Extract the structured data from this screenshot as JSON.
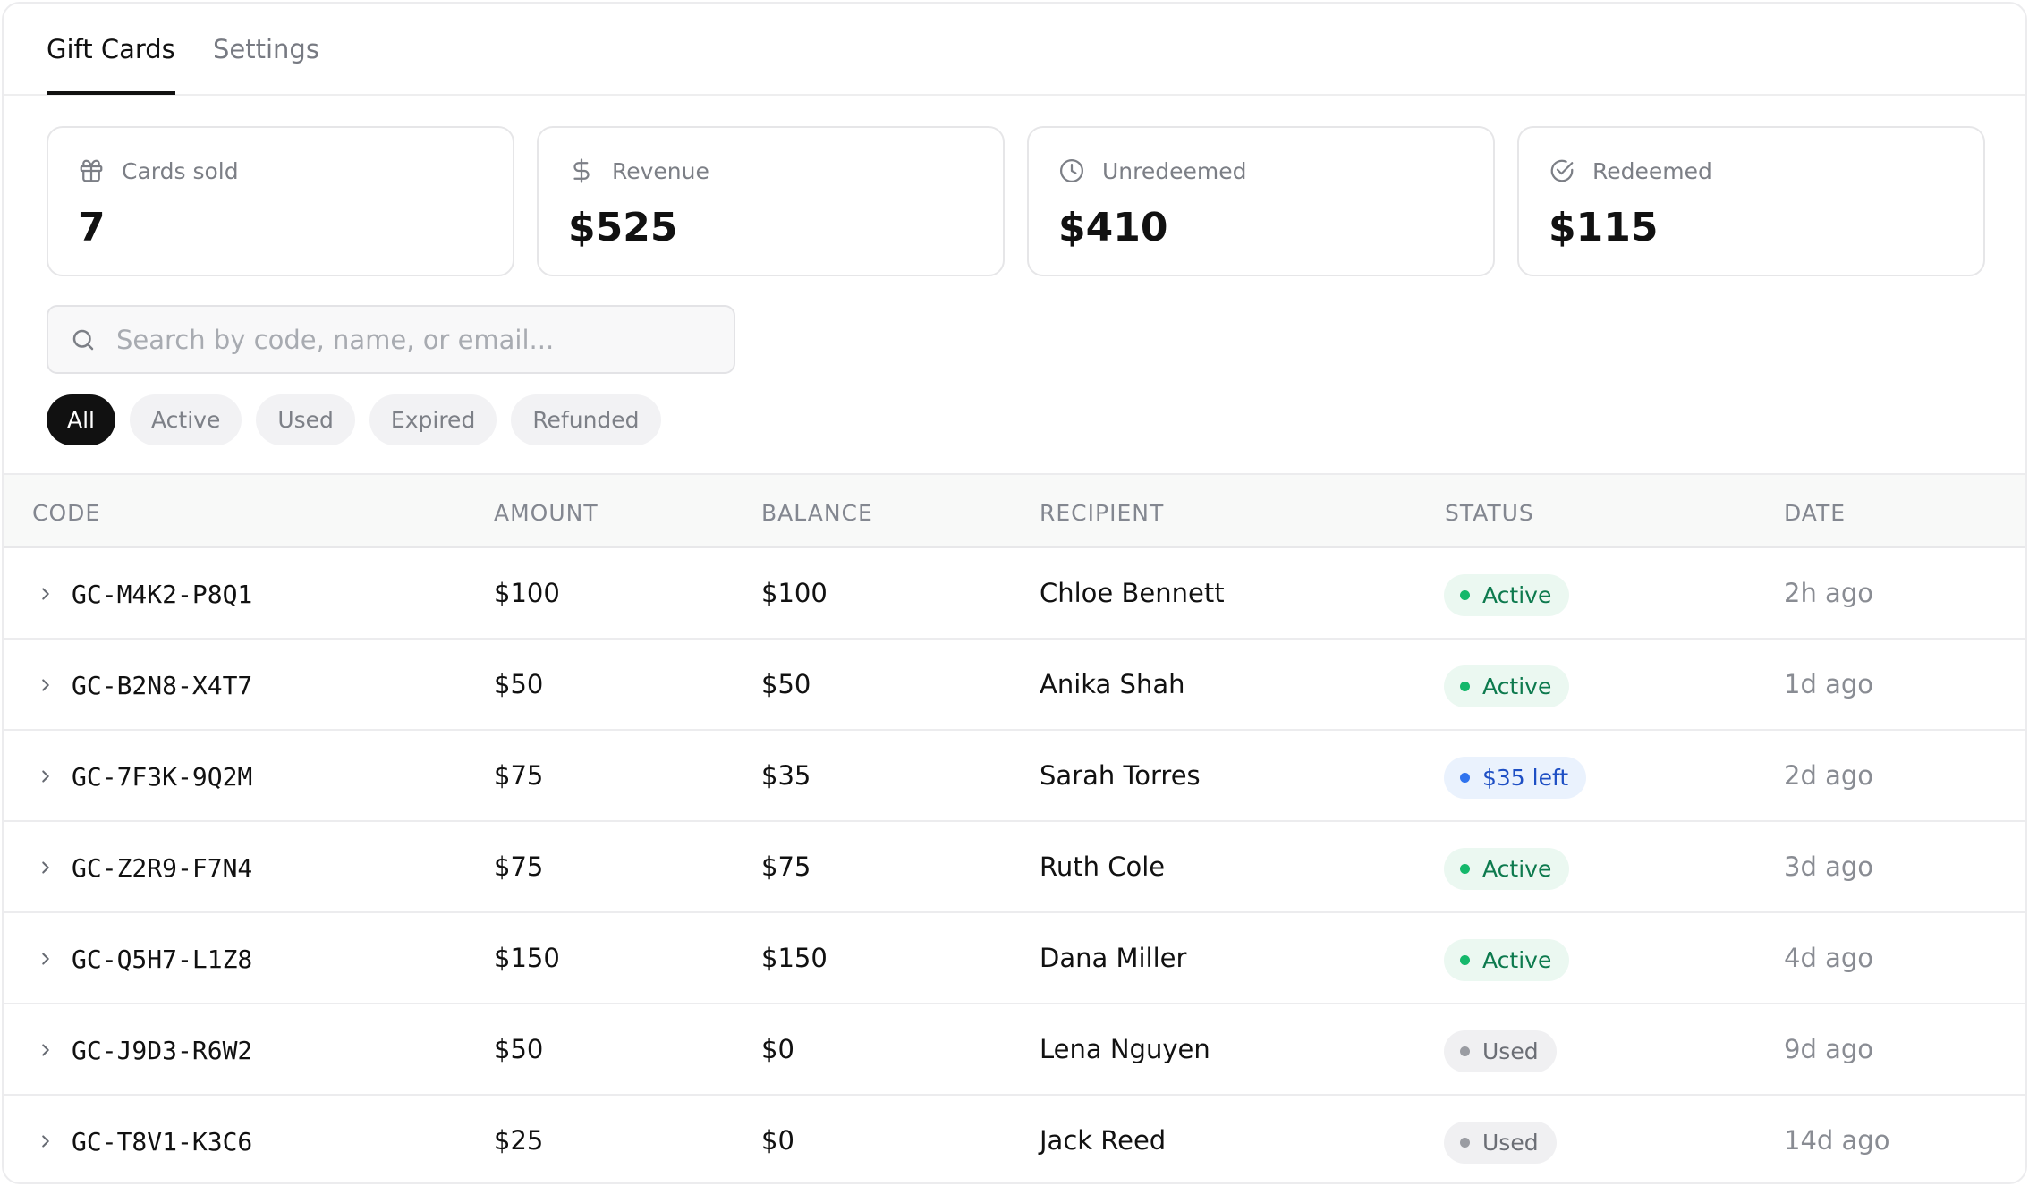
{
  "tabs": [
    {
      "label": "Gift Cards",
      "active": true
    },
    {
      "label": "Settings",
      "active": false
    }
  ],
  "stats": [
    {
      "label": "Cards sold",
      "value": "7",
      "icon": "gift-icon"
    },
    {
      "label": "Revenue",
      "value": "$525",
      "icon": "dollar-icon"
    },
    {
      "label": "Unredeemed",
      "value": "$410",
      "icon": "clock-icon"
    },
    {
      "label": "Redeemed",
      "value": "$115",
      "icon": "check-circle-icon"
    }
  ],
  "search": {
    "placeholder": "Search by code, name, or email...",
    "value": ""
  },
  "filters": [
    {
      "label": "All",
      "selected": true
    },
    {
      "label": "Active",
      "selected": false
    },
    {
      "label": "Used",
      "selected": false
    },
    {
      "label": "Expired",
      "selected": false
    },
    {
      "label": "Refunded",
      "selected": false
    }
  ],
  "table": {
    "columns": {
      "code": "CODE",
      "amount": "AMOUNT",
      "balance": "BALANCE",
      "recipient": "RECIPIENT",
      "status": "STATUS",
      "date": "DATE"
    },
    "rows": [
      {
        "code": "GC-M4K2-P8Q1",
        "amount": "$100",
        "balance": "$100",
        "recipient": "Chloe Bennett",
        "status": "Active",
        "status_type": "active",
        "date": "2h ago"
      },
      {
        "code": "GC-B2N8-X4T7",
        "amount": "$50",
        "balance": "$50",
        "recipient": "Anika Shah",
        "status": "Active",
        "status_type": "active",
        "date": "1d ago"
      },
      {
        "code": "GC-7F3K-9Q2M",
        "amount": "$75",
        "balance": "$35",
        "recipient": "Sarah Torres",
        "status": "$35 left",
        "status_type": "partial",
        "date": "2d ago"
      },
      {
        "code": "GC-Z2R9-F7N4",
        "amount": "$75",
        "balance": "$75",
        "recipient": "Ruth Cole",
        "status": "Active",
        "status_type": "active",
        "date": "3d ago"
      },
      {
        "code": "GC-Q5H7-L1Z8",
        "amount": "$150",
        "balance": "$150",
        "recipient": "Dana Miller",
        "status": "Active",
        "status_type": "active",
        "date": "4d ago"
      },
      {
        "code": "GC-J9D3-R6W2",
        "amount": "$50",
        "balance": "$0",
        "recipient": "Lena Nguyen",
        "status": "Used",
        "status_type": "used",
        "date": "9d ago"
      },
      {
        "code": "GC-T8V1-K3C6",
        "amount": "$25",
        "balance": "$0",
        "recipient": "Jack Reed",
        "status": "Used",
        "status_type": "used",
        "date": "14d ago"
      }
    ]
  },
  "colors": {
    "accent": "#111111",
    "active_badge_text": "#0d7a4e",
    "partial_badge_text": "#1e4fc4",
    "used_badge_text": "#6b6e75"
  }
}
